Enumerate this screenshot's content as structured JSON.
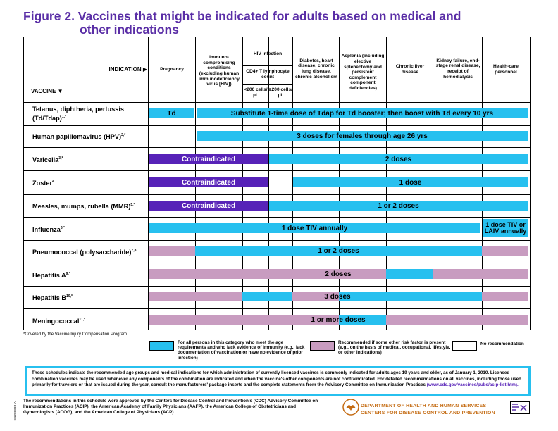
{
  "title": {
    "line1": "Figure 2. Vaccines that might be indicated for adults based on medical and",
    "line2": "other indications"
  },
  "header": {
    "indication": "INDICATION ▶",
    "vaccine": "VACCINE ▼",
    "pregnancy": "Pregnancy",
    "immuno": "Immuno-compromising conditions (excluding human immunodeficiency virus [HIV])",
    "hiv": "HIV infection",
    "hiv_sub": "CD4+ T lymphocyte count",
    "hiv_lt200": "<200 cells/µL",
    "hiv_ge200": "≥200 cells/µL",
    "diabetes": "Diabetes, heart disease, chronic lung disease, chronic alcoholism",
    "asplenia": "Asplenia (including elective splenectomy and persistent complement component deficiencies)",
    "liver": "Chronic liver disease",
    "kidney": "Kidney failure, end-stage renal disease, receipt of hemodialysis",
    "hcp": "Health-care personnel"
  },
  "rows": [
    {
      "name": "Tetanus, diphtheria, pertussis (Td/Tdap)",
      "sup": "1,*"
    },
    {
      "name": "Human papillomavirus (HPV)",
      "sup": "2,*"
    },
    {
      "name": "Varicella",
      "sup": "3,*"
    },
    {
      "name": "Zoster",
      "sup": "4"
    },
    {
      "name": "Measles, mumps, rubella (MMR)",
      "sup": "5,*"
    },
    {
      "name": "Influenza",
      "sup": "6,*"
    },
    {
      "name": "Pneumococcal (polysaccharide)",
      "sup": "7,8"
    },
    {
      "name": "Hepatitis A",
      "sup": "9,*"
    },
    {
      "name": "Hepatitis B",
      "sup": "10,*"
    },
    {
      "name": "Meningococcal",
      "sup": "11,*"
    }
  ],
  "bars": {
    "td": "Td",
    "tdap": "Substitute 1-time dose of Tdap for Td booster; then boost with Td every 10 yrs",
    "hpv": "3 doses for females through age 26 yrs",
    "contra": "Contraindicated",
    "var": "2 doses",
    "zoster": "1 dose",
    "mmr": "1 or 2 doses",
    "flu": "1 dose  TIV annually",
    "flu_hcp": "1 dose TIV or LAIV annually",
    "pneumo": "1 or 2 doses",
    "hepa": "2 doses",
    "hepb": "3 doses",
    "mening": "1 or more doses"
  },
  "vicp": "*Covered by the Vaccine Injury Compensation Program.",
  "legend": {
    "blue": "For all persons in this category who meet the age requirements and who lack evidence of immunity (e.g., lack documentation of vaccination or have no evidence of prior infection)",
    "pink": "Recommended if some other risk factor is present (e.g., on the basis of medical, occupational, lifestyle, or other indications)",
    "none": "No recommendation"
  },
  "note": {
    "text": "These schedules indicate the recommended age groups and medical indications for which administration of currently licensed vaccines is commonly indicated for adults ages 19 years and older, as of January 1, 2010. Licensed combination vaccines may be used whenever any components of the combination are indicated and when the vaccine's other components are not contraindicated. For detailed recommendations on all vaccines, including those used primarily for travelers or that are issued during the year, consult the manufacturers' package inserts and the complete statements from the Advisory Committee on Immunization Practices",
    "url": "(www.cdc.gov/vaccines/pubs/acip-list.htm)."
  },
  "footer": "The recommendations in this schedule were approved by the Centers for Disease Control and Prevention's (CDC) Advisory Committee on Immunization Practices (ACIP), the American Academy of Family Physicians (AAFP), the American College of Obstetricians and Gynecologists (ACOG), and the American College of Physicians (ACP).",
  "agency": {
    "line1": "Department of Health and Human Services",
    "line2": "Centers for Disease Control and Prevention"
  },
  "code": "CS208898-A",
  "colors": {
    "blue": "#27c0ef",
    "purple": "#5722b8",
    "pink": "#c89cc0",
    "title": "#5a2ea6"
  }
}
